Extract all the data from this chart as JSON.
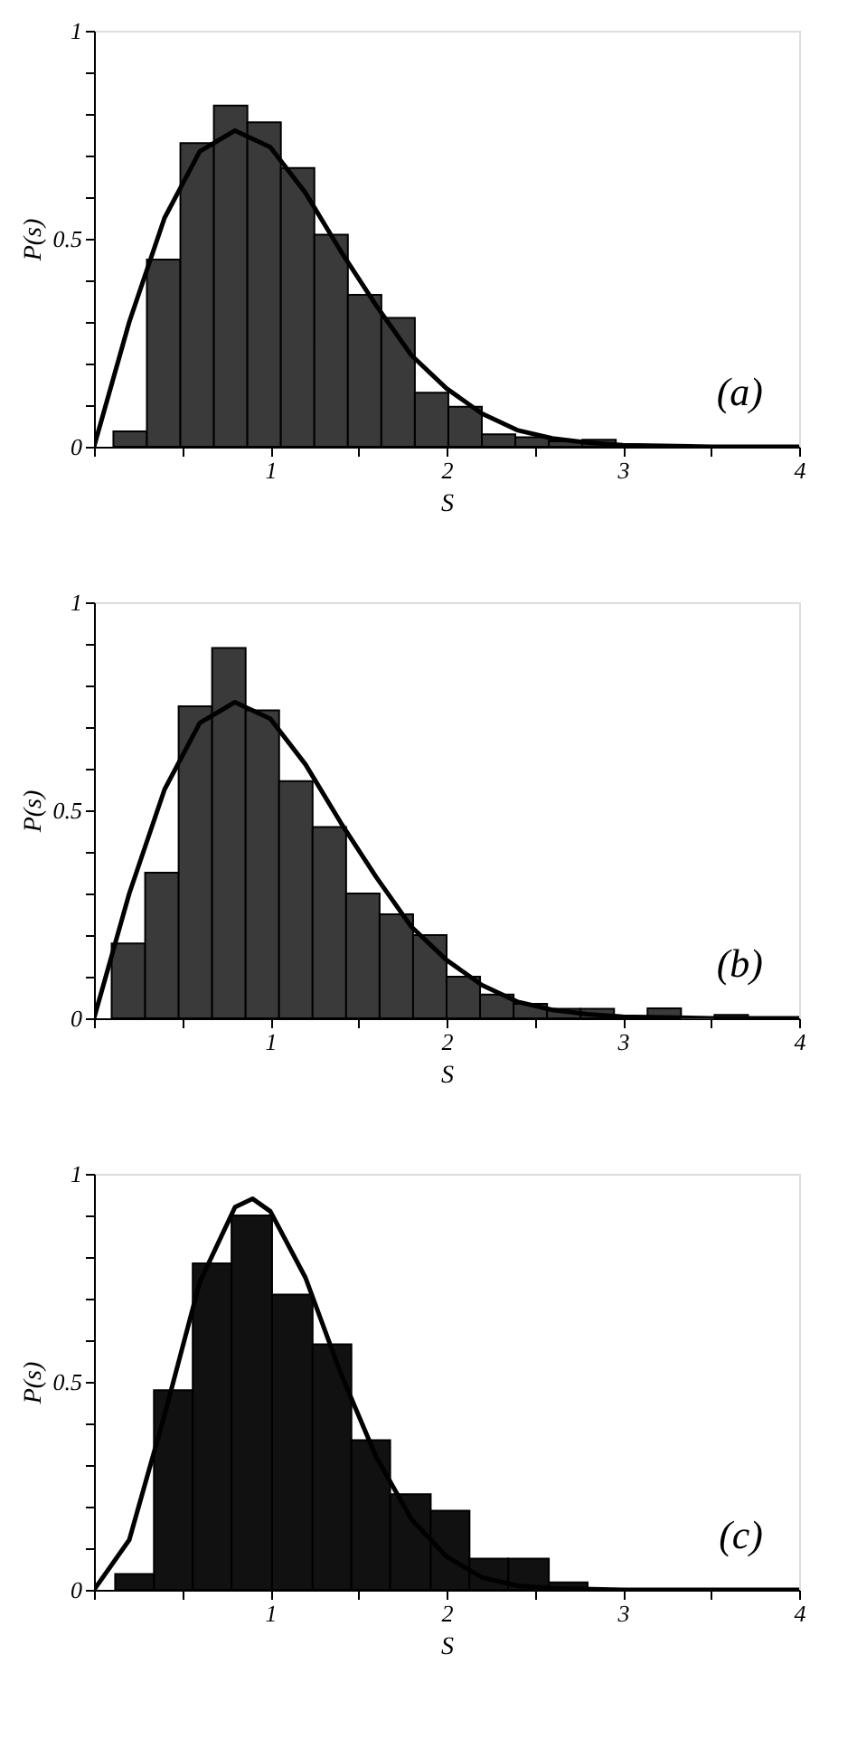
{
  "chart_data": [
    {
      "type": "histogram",
      "xlabel": "S",
      "ylabel": "P(s)",
      "color": "#3a3a3a",
      "xlim": [
        0,
        4
      ],
      "ylim": [
        0,
        1
      ],
      "xticks": [
        {
          "value": 0,
          "label": null
        },
        {
          "value": 0.5,
          "label": null
        },
        1,
        {
          "value": 1.5,
          "label": null
        },
        2,
        {
          "value": 2.5,
          "label": null
        },
        3,
        {
          "value": 3.5,
          "label": null
        },
        4
      ],
      "yticks": [
        0,
        {
          "value": 0.1,
          "label": null
        },
        {
          "value": 0.2,
          "label": null
        },
        {
          "value": 0.3,
          "label": null
        },
        {
          "value": 0.4,
          "label": null
        },
        0.5,
        {
          "value": 0.6,
          "label": null
        },
        {
          "value": 0.7,
          "label": null
        },
        {
          "value": 0.8,
          "label": null
        },
        {
          "value": 0.9,
          "label": null
        },
        1
      ],
      "grid": false,
      "annotations": [
        "(a)"
      ],
      "bins": [
        0.11,
        0.3,
        0.49,
        0.68,
        0.87,
        1.06,
        1.25,
        1.44,
        1.63,
        1.82,
        2.01,
        2.2,
        2.39,
        2.58,
        2.77,
        2.96
      ],
      "values": [
        0.037,
        0.45,
        0.73,
        0.82,
        0.78,
        0.67,
        0.51,
        0.365,
        0.31,
        0.13,
        0.096,
        0.03,
        0.023,
        0.013,
        0.017
      ],
      "series": [
        {
          "type": "line",
          "color": "#000000",
          "x": [
            0,
            0.2,
            0.4,
            0.6,
            0.8,
            1.0,
            1.2,
            1.4,
            1.6,
            1.8,
            2.0,
            2.2,
            2.4,
            2.6,
            2.8,
            3.0,
            3.5,
            4.0
          ],
          "values": [
            0,
            0.3,
            0.55,
            0.71,
            0.76,
            0.72,
            0.61,
            0.47,
            0.34,
            0.22,
            0.14,
            0.08,
            0.04,
            0.02,
            0.01,
            0.004,
            0,
            0
          ]
        }
      ]
    },
    {
      "type": "histogram",
      "xlabel": "S",
      "ylabel": "P(s)",
      "color": "#3a3a3a",
      "xlim": [
        0,
        4
      ],
      "ylim": [
        0,
        1
      ],
      "xticks": [
        {
          "value": 0,
          "label": null
        },
        {
          "value": 0.5,
          "label": null
        },
        1,
        {
          "value": 1.5,
          "label": null
        },
        2,
        {
          "value": 2.5,
          "label": null
        },
        3,
        {
          "value": 3.5,
          "label": null
        },
        4
      ],
      "yticks": [
        0,
        {
          "value": 0.1,
          "label": null
        },
        {
          "value": 0.2,
          "label": null
        },
        {
          "value": 0.3,
          "label": null
        },
        {
          "value": 0.4,
          "label": null
        },
        0.5,
        {
          "value": 0.6,
          "label": null
        },
        {
          "value": 0.7,
          "label": null
        },
        {
          "value": 0.8,
          "label": null
        },
        {
          "value": 0.9,
          "label": null
        },
        1
      ],
      "grid": false,
      "annotations": [
        "(b)"
      ],
      "bins": [
        0.1,
        0.29,
        0.48,
        0.67,
        0.86,
        1.05,
        1.24,
        1.43,
        1.62,
        1.81,
        2.0,
        2.19,
        2.38,
        2.57,
        2.76,
        2.95,
        3.14,
        3.33,
        3.52,
        3.71
      ],
      "values": [
        0.18,
        0.35,
        0.75,
        0.89,
        0.74,
        0.57,
        0.46,
        0.3,
        0.25,
        0.2,
        0.1,
        0.057,
        0.035,
        0.023,
        0.023,
        null,
        0.024,
        0,
        0.008
      ],
      "series": [
        {
          "type": "line",
          "color": "#000000",
          "x": [
            0,
            0.2,
            0.4,
            0.6,
            0.8,
            1.0,
            1.2,
            1.4,
            1.6,
            1.8,
            2.0,
            2.2,
            2.4,
            2.6,
            2.8,
            3.0,
            3.5,
            4.0
          ],
          "values": [
            0,
            0.3,
            0.55,
            0.71,
            0.76,
            0.72,
            0.61,
            0.47,
            0.34,
            0.22,
            0.14,
            0.08,
            0.04,
            0.02,
            0.01,
            0.004,
            0,
            0
          ]
        }
      ]
    },
    {
      "type": "histogram",
      "xlabel": "S",
      "ylabel": "P(s)",
      "color": "#111111",
      "xlim": [
        0,
        4
      ],
      "ylim": [
        0,
        1
      ],
      "xticks": [
        {
          "value": 0,
          "label": null
        },
        {
          "value": 0.5,
          "label": null
        },
        1,
        {
          "value": 1.5,
          "label": null
        },
        2,
        {
          "value": 2.5,
          "label": null
        },
        3,
        {
          "value": 3.5,
          "label": null
        },
        4
      ],
      "yticks": [
        0,
        {
          "value": 0.1,
          "label": null
        },
        {
          "value": 0.2,
          "label": null
        },
        {
          "value": 0.3,
          "label": null
        },
        {
          "value": 0.4,
          "label": null
        },
        0.5,
        {
          "value": 0.6,
          "label": null
        },
        {
          "value": 0.7,
          "label": null
        },
        {
          "value": 0.8,
          "label": null
        },
        {
          "value": 0.9,
          "label": null
        },
        1
      ],
      "grid": false,
      "annotations": [
        "(c)"
      ],
      "bins": [
        0.12,
        0.34,
        0.56,
        0.78,
        1.01,
        1.24,
        1.46,
        1.68,
        1.91,
        2.13,
        2.35,
        2.58,
        2.8
      ],
      "values": [
        0.038,
        0.48,
        0.785,
        0.9,
        0.71,
        0.59,
        0.36,
        0.23,
        0.19,
        0.075,
        0.075,
        0.018
      ],
      "series": [
        {
          "type": "line",
          "color": "#000000",
          "x": [
            0,
            0.2,
            0.4,
            0.6,
            0.8,
            0.9,
            1.0,
            1.2,
            1.4,
            1.6,
            1.8,
            2.0,
            2.2,
            2.4,
            2.6,
            3.0,
            3.5,
            4.0
          ],
          "values": [
            0,
            0.12,
            0.42,
            0.74,
            0.92,
            0.94,
            0.91,
            0.75,
            0.52,
            0.32,
            0.17,
            0.08,
            0.03,
            0.01,
            0.004,
            0,
            0,
            0
          ]
        }
      ]
    }
  ]
}
